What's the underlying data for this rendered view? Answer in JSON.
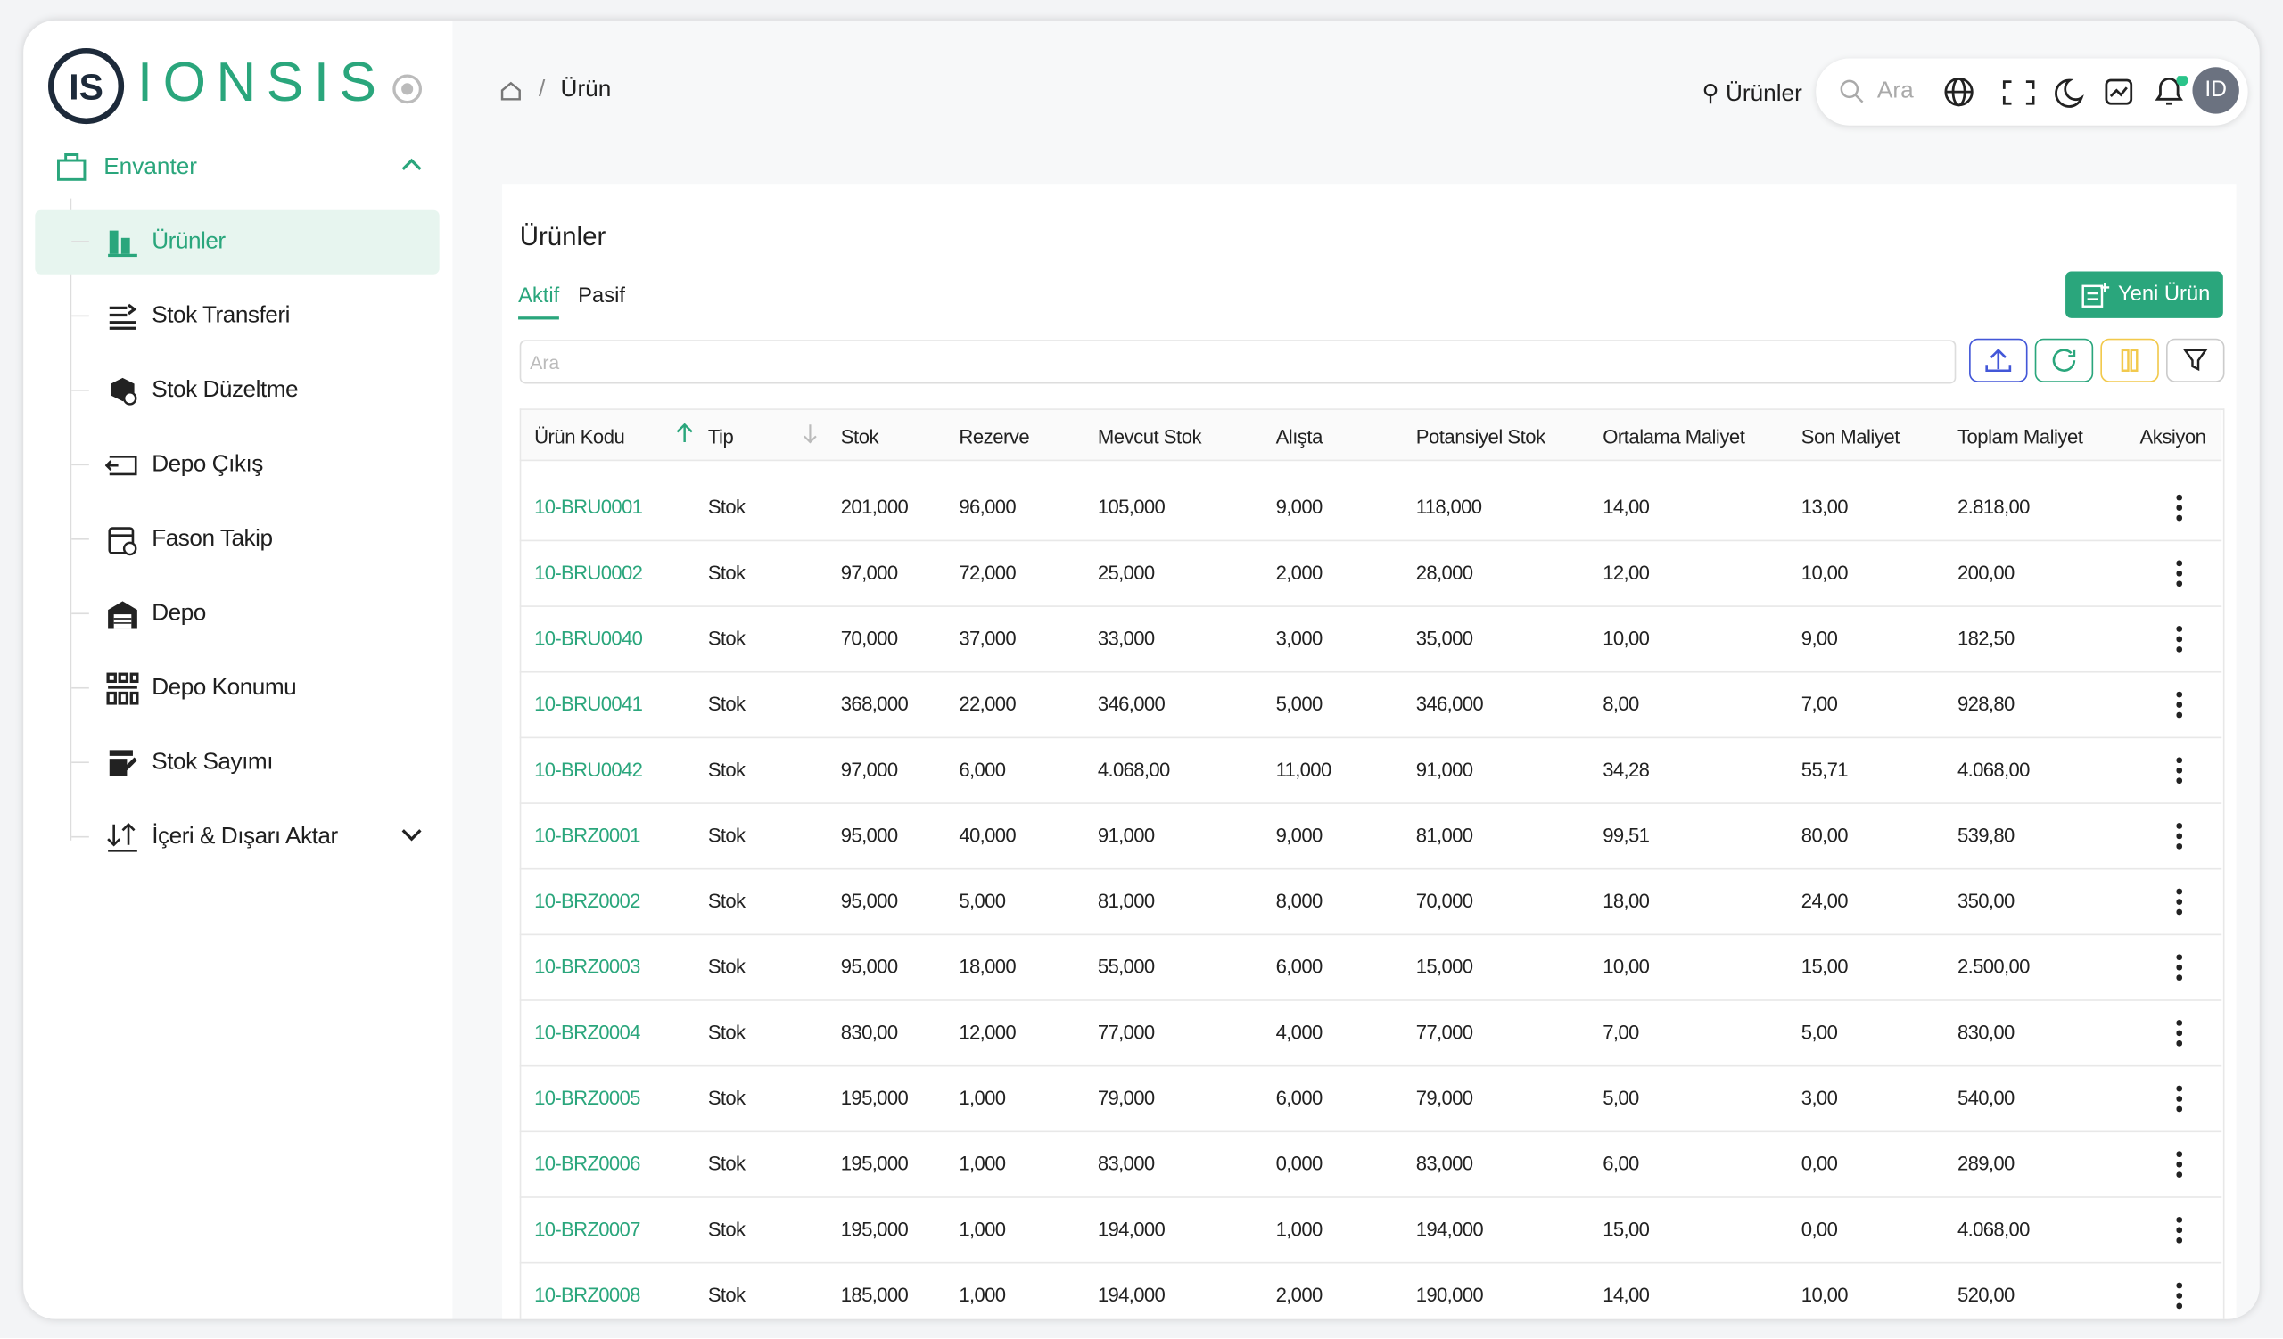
{
  "sidebar": {
    "logo_mark": "IS",
    "logo_text": "IONSIS",
    "section": "Envanter",
    "items": [
      "Ürünler",
      "Stok Transferi",
      "Stok Düzeltme",
      "Depo Çıkış",
      "Fason Takip",
      "Depo",
      "Depo Konumu",
      "Stok Sayımı",
      "İçeri & Dışarı Aktar"
    ]
  },
  "header": {
    "breadcrumb": "Ürün",
    "pinned": "Ürünler",
    "search": "Ara",
    "avatar": "ID"
  },
  "page": {
    "title": "Ürünler",
    "tabs": [
      "Aktif",
      "Pasif"
    ],
    "new_button": "Yeni Ürün",
    "search_placeholder": "Ara"
  },
  "table": {
    "columns": [
      "Ürün Kodu",
      "Tip",
      "Stok",
      "Rezerve",
      "Mevcut Stok",
      "Alışta",
      "Potansiyel Stok",
      "Ortalama Maliyet",
      "Son Maliyet",
      "Toplam Maliyet",
      "Aksiyon"
    ],
    "rows": [
      [
        "10-BRU0001",
        "Stok",
        "201,000",
        "96,000",
        "105,000",
        "9,000",
        "118,000",
        "14,00",
        "13,00",
        "2.818,00"
      ],
      [
        "10-BRU0002",
        "Stok",
        "97,000",
        "72,000",
        "25,000",
        "2,000",
        "28,000",
        "12,00",
        "10,00",
        "200,00"
      ],
      [
        "10-BRU0040",
        "Stok",
        "70,000",
        "37,000",
        "33,000",
        "3,000",
        "35,000",
        "10,00",
        "9,00",
        "182,50"
      ],
      [
        "10-BRU0041",
        "Stok",
        "368,000",
        "22,000",
        "346,000",
        "5,000",
        "346,000",
        "8,00",
        "7,00",
        "928,80"
      ],
      [
        "10-BRU0042",
        "Stok",
        "97,000",
        "6,000",
        "4.068,00",
        "11,000",
        "91,000",
        "34,28",
        "55,71",
        "4.068,00"
      ],
      [
        "10-BRZ0001",
        "Stok",
        "95,000",
        "40,000",
        "91,000",
        "9,000",
        "81,000",
        "99,51",
        "80,00",
        "539,80"
      ],
      [
        "10-BRZ0002",
        "Stok",
        "95,000",
        "5,000",
        "81,000",
        "8,000",
        "70,000",
        "18,00",
        "24,00",
        "350,00"
      ],
      [
        "10-BRZ0003",
        "Stok",
        "95,000",
        "18,000",
        "55,000",
        "6,000",
        "15,000",
        "10,00",
        "15,00",
        "2.500,00"
      ],
      [
        "10-BRZ0004",
        "Stok",
        "830,00",
        "12,000",
        "77,000",
        "4,000",
        "77,000",
        "7,00",
        "5,00",
        "830,00"
      ],
      [
        "10-BRZ0005",
        "Stok",
        "195,000",
        "1,000",
        "79,000",
        "6,000",
        "79,000",
        "5,00",
        "3,00",
        "540,00"
      ],
      [
        "10-BRZ0006",
        "Stok",
        "195,000",
        "1,000",
        "83,000",
        "0,000",
        "83,000",
        "6,00",
        "0,00",
        "289,00"
      ],
      [
        "10-BRZ0007",
        "Stok",
        "195,000",
        "1,000",
        "194,000",
        "1,000",
        "194,000",
        "15,00",
        "0,00",
        "4.068,00"
      ],
      [
        "10-BRZ0008",
        "Stok",
        "185,000",
        "1,000",
        "194,000",
        "2,000",
        "190,000",
        "14,00",
        "10,00",
        "520,00"
      ]
    ]
  }
}
